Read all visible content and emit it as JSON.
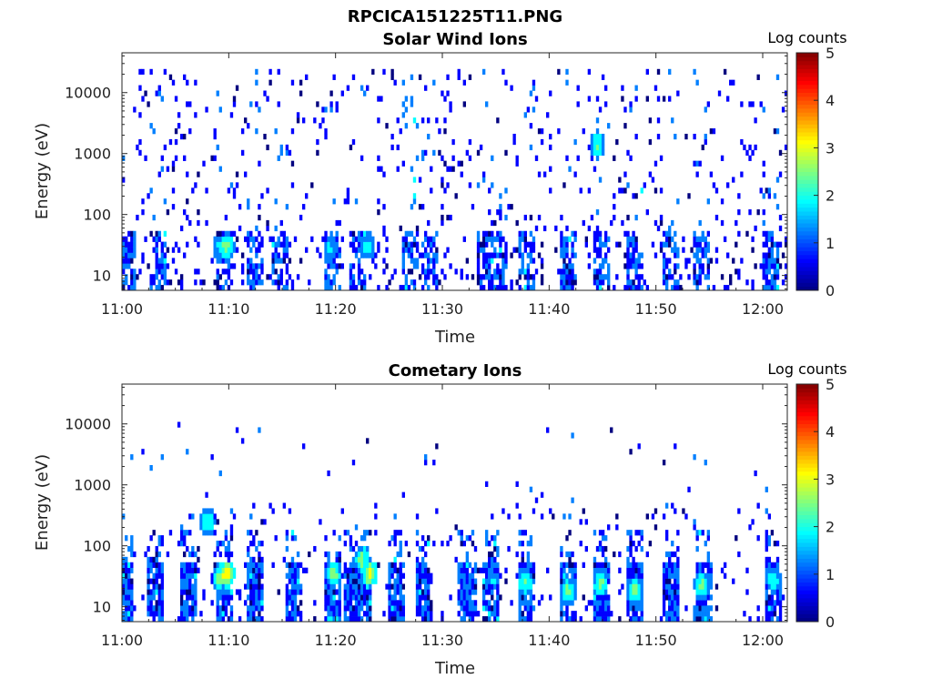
{
  "figure_title": "RPCICA151225T11.PNG",
  "colormap": [
    "#00007f",
    "#0000ff",
    "#007fff",
    "#00ffff",
    "#7fff7f",
    "#ffff00",
    "#ff7f00",
    "#ff0000",
    "#7f0000"
  ],
  "chart_data": [
    {
      "type": "heatmap",
      "title": "Solar Wind Ions",
      "xlabel": "Time",
      "ylabel": "Energy (eV)",
      "x_ticks": [
        "11:00",
        "11:10",
        "11:20",
        "11:30",
        "11:40",
        "11:50",
        "12:00"
      ],
      "x_range_minutes": [
        0,
        62.3
      ],
      "y_ticks": [
        "10",
        "100",
        "1000",
        "10000"
      ],
      "y_scale": "log",
      "y_range_eV": [
        5.7,
        45000
      ],
      "colorbar": {
        "label": "Log counts",
        "ticks": [
          "0",
          "1",
          "2",
          "3",
          "4",
          "5"
        ],
        "range": [
          0,
          5
        ]
      },
      "hotspots": [
        {
          "t": 9.8,
          "e": 30,
          "level": 2.3
        },
        {
          "t": 9.2,
          "e": 28,
          "level": 1.6
        },
        {
          "t": 19.6,
          "e": 28,
          "level": 1.6
        },
        {
          "t": 23.0,
          "e": 30,
          "level": 1.8
        },
        {
          "t": 44.5,
          "e": 1400,
          "level": 2.0
        },
        {
          "t": 0.2,
          "e": 25,
          "level": 0.8
        }
      ],
      "band_times": [
        0.4,
        3.3,
        9.5,
        12.5,
        14.8,
        19.8,
        22.0,
        27.0,
        28.9,
        34.0,
        35.3,
        38.0,
        41.7,
        44.9,
        48.0,
        51.5,
        54.3,
        60.8
      ],
      "scatter_density": 1.0
    },
    {
      "type": "heatmap",
      "title": "Cometary Ions",
      "xlabel": "Time",
      "ylabel": "Energy (eV)",
      "x_ticks": [
        "11:00",
        "11:10",
        "11:20",
        "11:30",
        "11:40",
        "11:50",
        "12:00"
      ],
      "x_range_minutes": [
        0,
        62.3
      ],
      "y_ticks": [
        "10",
        "100",
        "1000",
        "10000"
      ],
      "y_scale": "log",
      "y_range_eV": [
        5.7,
        45000
      ],
      "colorbar": {
        "label": "Log counts",
        "ticks": [
          "0",
          "1",
          "2",
          "3",
          "4",
          "5"
        ],
        "range": [
          0,
          5
        ]
      },
      "hotspots": [
        {
          "t": 9.8,
          "e": 35,
          "level": 3.1
        },
        {
          "t": 9.2,
          "e": 30,
          "level": 2.3
        },
        {
          "t": 19.8,
          "e": 35,
          "level": 2.5
        },
        {
          "t": 22.5,
          "e": 60,
          "level": 2.3
        },
        {
          "t": 23.2,
          "e": 35,
          "level": 2.8
        },
        {
          "t": 8.0,
          "e": 250,
          "level": 2.0
        },
        {
          "t": 37.8,
          "e": 25,
          "level": 2.2
        },
        {
          "t": 44.8,
          "e": 25,
          "level": 2.3
        },
        {
          "t": 48.0,
          "e": 18,
          "level": 2.4
        },
        {
          "t": 54.3,
          "e": 22,
          "level": 2.2
        },
        {
          "t": 41.8,
          "e": 18,
          "level": 2.2
        },
        {
          "t": 61.0,
          "e": 28,
          "level": 1.9
        }
      ],
      "band_times": [
        0.3,
        3.1,
        6.2,
        9.6,
        12.5,
        16.0,
        19.8,
        21.5,
        22.6,
        25.6,
        28.2,
        32.3,
        34.6,
        37.8,
        41.7,
        44.8,
        48.0,
        51.5,
        54.4,
        60.9
      ],
      "scatter_density": 0.25
    }
  ]
}
